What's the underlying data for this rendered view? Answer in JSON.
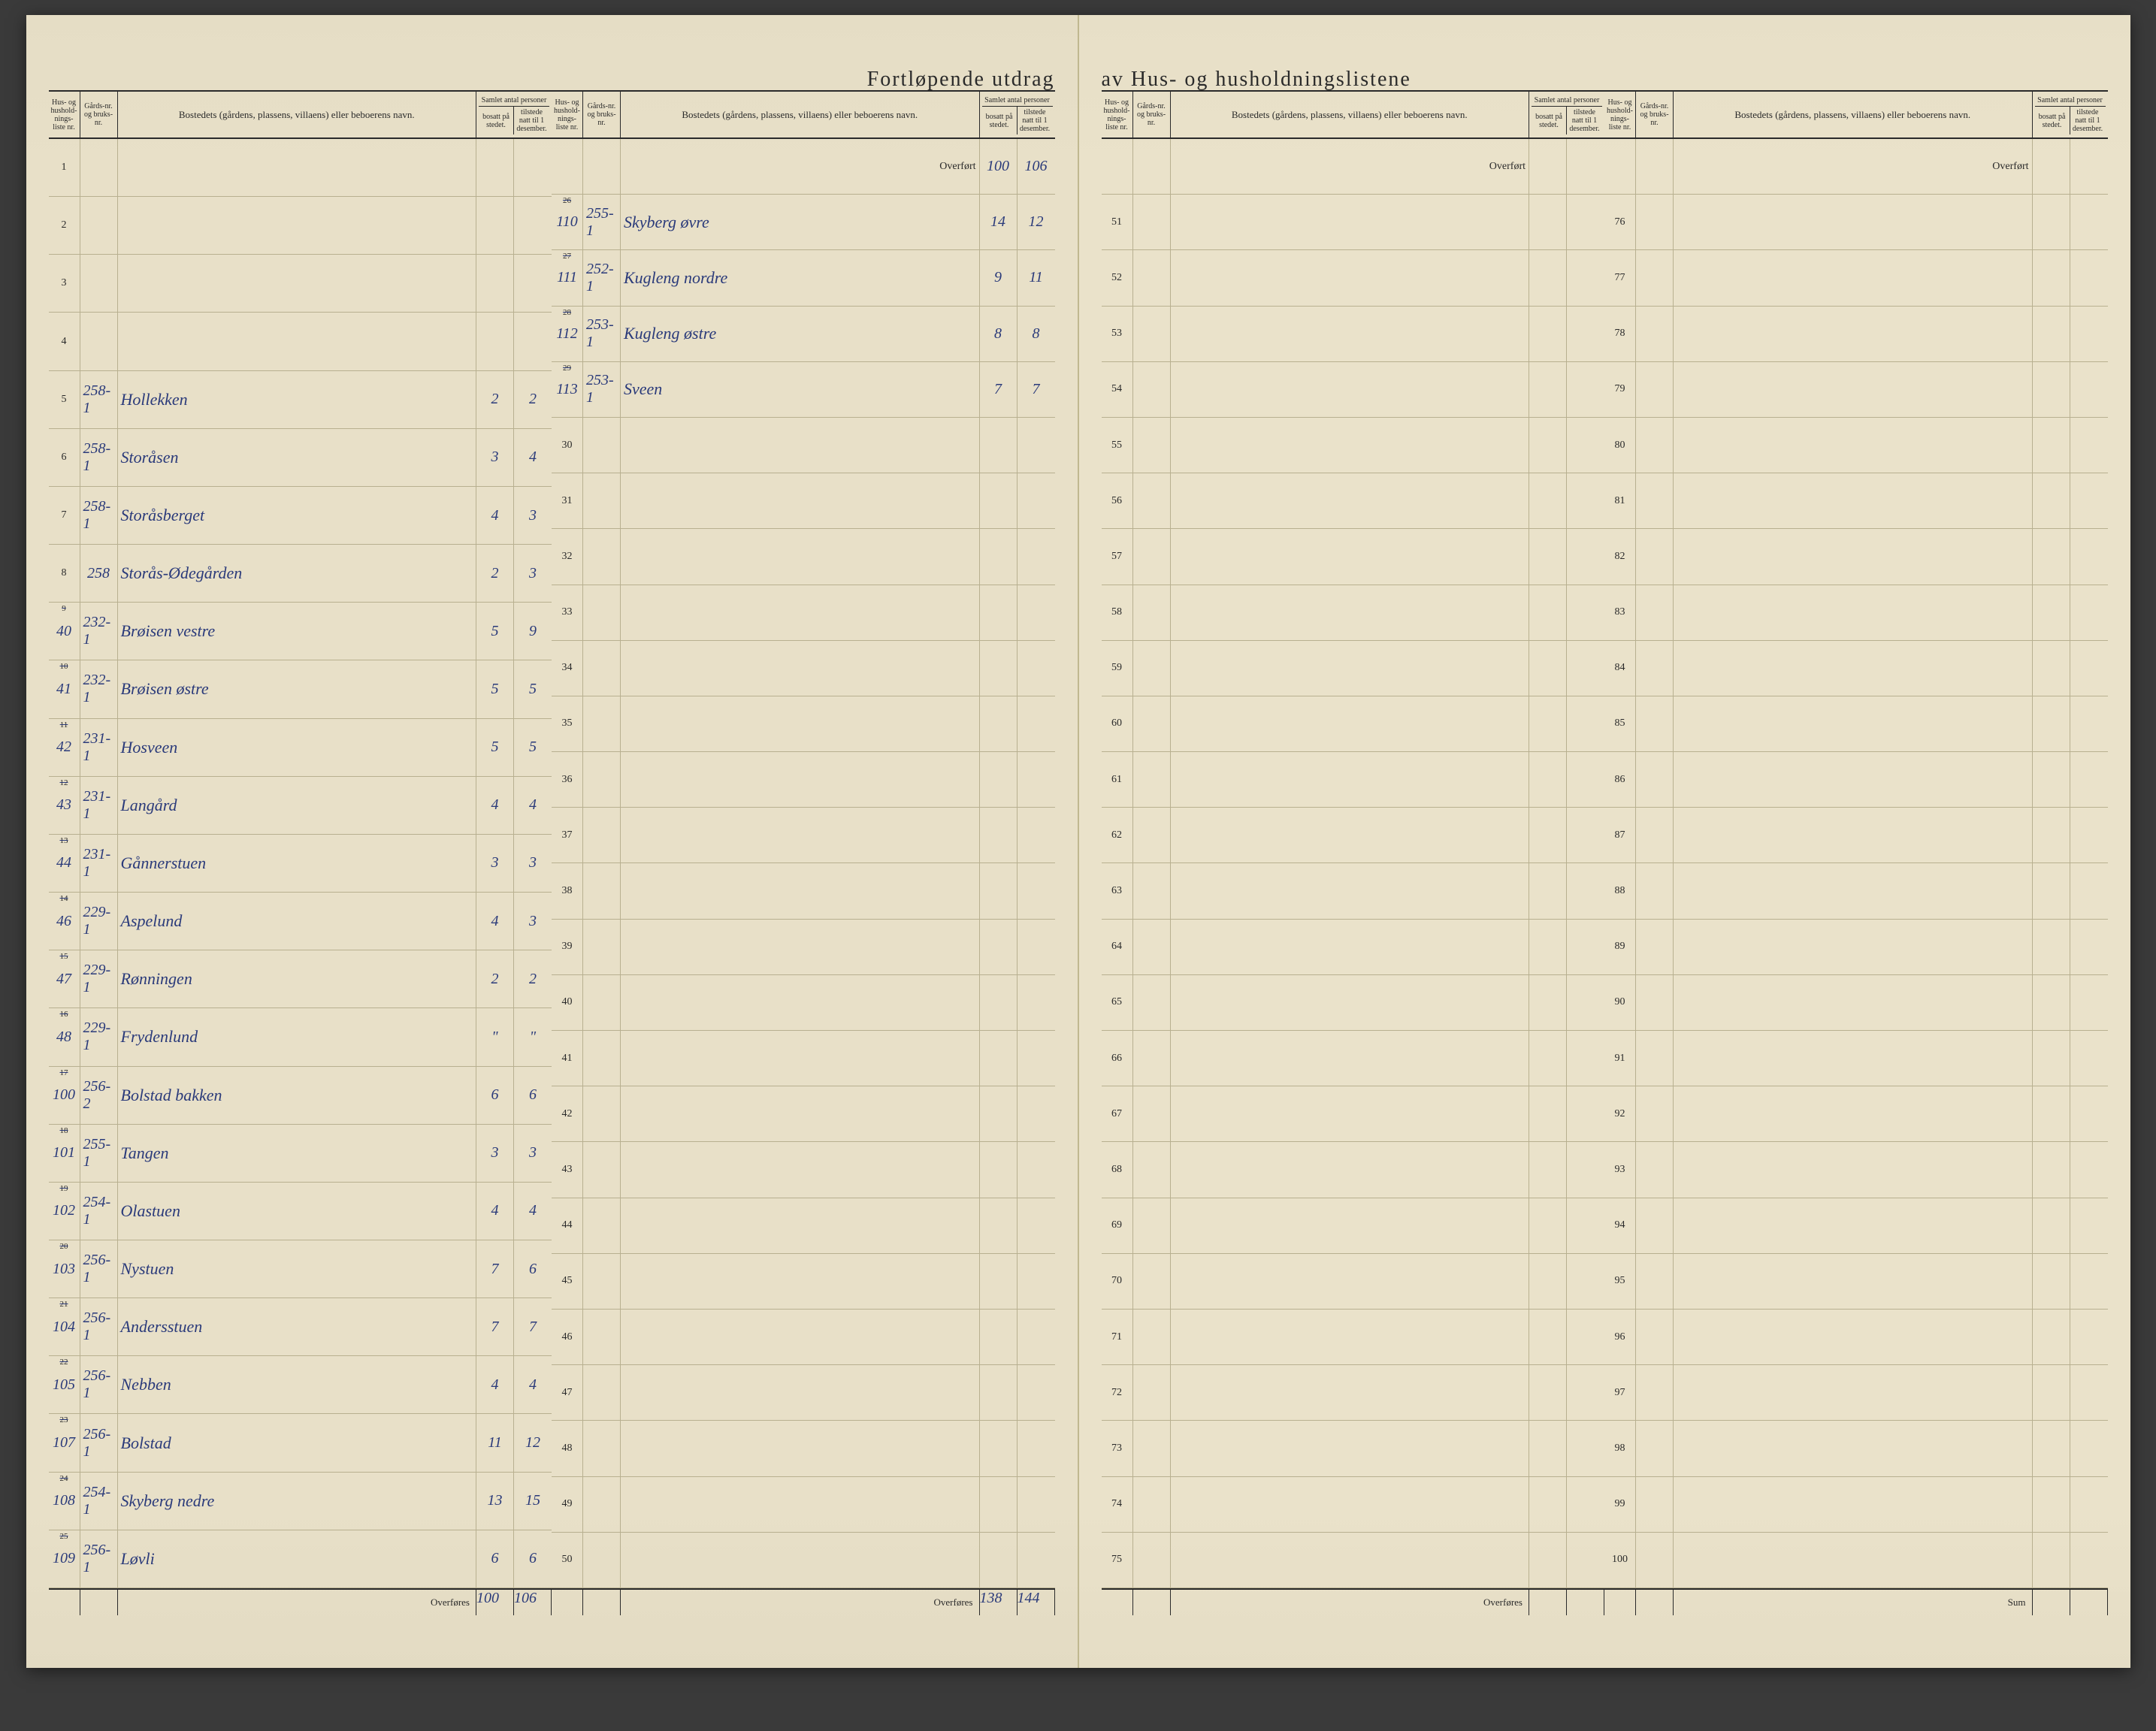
{
  "title_left": "Fortløpende utdrag",
  "title_right": "av Hus- og husholdningslistene",
  "headers": {
    "liste": "Hus- og hushold-nings-liste nr.",
    "gards": "Gårds-nr. og bruks-nr.",
    "bosted": "Bostedets (gårdens, plassens, villaens) eller beboerens navn.",
    "samlet": "Samlet antal personer",
    "bosatt": "bosatt på stedet.",
    "tilstede": "tilstede natt til 1 desember."
  },
  "overfort": "Overført",
  "overfores": "Overføres",
  "sum": "Sum",
  "left_page": {
    "col1": {
      "rows": [
        {
          "n": "1",
          "g": "",
          "name": "",
          "b": "",
          "t": ""
        },
        {
          "n": "2",
          "g": "",
          "name": "",
          "b": "",
          "t": ""
        },
        {
          "n": "3",
          "g": "",
          "name": "",
          "b": "",
          "t": ""
        },
        {
          "n": "4",
          "g": "",
          "name": "",
          "b": "",
          "t": ""
        },
        {
          "n": "5",
          "g": "258-1",
          "name": "Hollekken",
          "b": "2",
          "t": "2"
        },
        {
          "n": "6",
          "g": "258-1",
          "name": "Storåsen",
          "b": "3",
          "t": "4"
        },
        {
          "n": "7",
          "g": "258-1",
          "name": "Storåsberget",
          "b": "4",
          "t": "3"
        },
        {
          "n": "8",
          "g": "258",
          "name": "Storås-Ødegården",
          "b": "2",
          "t": "3"
        },
        {
          "n": "40",
          "ns": "9",
          "g": "232-1",
          "name": "Brøisen vestre",
          "b": "5",
          "t": "9"
        },
        {
          "n": "41",
          "ns": "10",
          "g": "232-1",
          "name": "Brøisen østre",
          "b": "5",
          "t": "5"
        },
        {
          "n": "42",
          "ns": "11",
          "g": "231-1",
          "name": "Hosveen",
          "b": "5",
          "t": "5"
        },
        {
          "n": "43",
          "ns": "12",
          "g": "231-1",
          "name": "Langård",
          "b": "4",
          "t": "4"
        },
        {
          "n": "44",
          "ns": "13",
          "g": "231-1",
          "name": "Gånnerstuen",
          "b": "3",
          "t": "3"
        },
        {
          "n": "46",
          "ns": "14",
          "g": "229-1",
          "name": "Aspelund",
          "b": "4",
          "t": "3"
        },
        {
          "n": "47",
          "ns": "15",
          "g": "229-1",
          "name": "Rønningen",
          "b": "2",
          "t": "2"
        },
        {
          "n": "48",
          "ns": "16",
          "g": "229-1",
          "name": "Frydenlund",
          "b": "\"",
          "t": "\""
        },
        {
          "n": "100",
          "ns": "17",
          "g": "256-2",
          "name": "Bolstad bakken",
          "b": "6",
          "t": "6"
        },
        {
          "n": "101",
          "ns": "18",
          "g": "255-1",
          "name": "Tangen",
          "b": "3",
          "t": "3"
        },
        {
          "n": "102",
          "ns": "19",
          "g": "254-1",
          "name": "Olastuen",
          "b": "4",
          "t": "4"
        },
        {
          "n": "103",
          "ns": "20",
          "g": "256-1",
          "name": "Nystuen",
          "b": "7",
          "t": "6"
        },
        {
          "n": "104",
          "ns": "21",
          "g": "256-1",
          "name": "Andersstuen",
          "b": "7",
          "t": "7"
        },
        {
          "n": "105",
          "ns": "22",
          "g": "256-1",
          "name": "Nebben",
          "b": "4",
          "t": "4"
        },
        {
          "n": "107",
          "ns": "23",
          "g": "256-1",
          "name": "Bolstad",
          "b": "11",
          "t": "12"
        },
        {
          "n": "108",
          "ns": "24",
          "g": "254-1",
          "name": "Skyberg nedre",
          "b": "13",
          "t": "15"
        },
        {
          "n": "109",
          "ns": "25",
          "g": "256-1",
          "name": "Løvli",
          "b": "6",
          "t": "6"
        }
      ],
      "footer_b": "100",
      "footer_t": "106"
    },
    "col2": {
      "overfort_b": "100",
      "overfort_t": "106",
      "rows": [
        {
          "n": "110",
          "ns": "26",
          "g": "255-1",
          "name": "Skyberg øvre",
          "b": "14",
          "t": "12"
        },
        {
          "n": "111",
          "ns": "27",
          "g": "252-1",
          "name": "Kugleng nordre",
          "b": "9",
          "t": "11"
        },
        {
          "n": "112",
          "ns": "28",
          "g": "253-1",
          "name": "Kugleng østre",
          "b": "8",
          "t": "8"
        },
        {
          "n": "113",
          "ns": "29",
          "g": "253-1",
          "name": "Sveen",
          "b": "7",
          "t": "7"
        },
        {
          "n": "30"
        },
        {
          "n": "31"
        },
        {
          "n": "32"
        },
        {
          "n": "33"
        },
        {
          "n": "34"
        },
        {
          "n": "35"
        },
        {
          "n": "36"
        },
        {
          "n": "37"
        },
        {
          "n": "38"
        },
        {
          "n": "39"
        },
        {
          "n": "40"
        },
        {
          "n": "41"
        },
        {
          "n": "42"
        },
        {
          "n": "43"
        },
        {
          "n": "44"
        },
        {
          "n": "45"
        },
        {
          "n": "46"
        },
        {
          "n": "47"
        },
        {
          "n": "48"
        },
        {
          "n": "49"
        },
        {
          "n": "50"
        }
      ],
      "footer_b": "138",
      "footer_t": "144"
    }
  },
  "right_page": {
    "col1": {
      "rows": [
        {
          "n": "51"
        },
        {
          "n": "52"
        },
        {
          "n": "53"
        },
        {
          "n": "54"
        },
        {
          "n": "55"
        },
        {
          "n": "56"
        },
        {
          "n": "57"
        },
        {
          "n": "58"
        },
        {
          "n": "59"
        },
        {
          "n": "60"
        },
        {
          "n": "61"
        },
        {
          "n": "62"
        },
        {
          "n": "63"
        },
        {
          "n": "64"
        },
        {
          "n": "65"
        },
        {
          "n": "66"
        },
        {
          "n": "67"
        },
        {
          "n": "68"
        },
        {
          "n": "69"
        },
        {
          "n": "70"
        },
        {
          "n": "71"
        },
        {
          "n": "72"
        },
        {
          "n": "73"
        },
        {
          "n": "74"
        },
        {
          "n": "75"
        }
      ]
    },
    "col2": {
      "rows": [
        {
          "n": "76"
        },
        {
          "n": "77"
        },
        {
          "n": "78"
        },
        {
          "n": "79"
        },
        {
          "n": "80"
        },
        {
          "n": "81"
        },
        {
          "n": "82"
        },
        {
          "n": "83"
        },
        {
          "n": "84"
        },
        {
          "n": "85"
        },
        {
          "n": "86"
        },
        {
          "n": "87"
        },
        {
          "n": "88"
        },
        {
          "n": "89"
        },
        {
          "n": "90"
        },
        {
          "n": "91"
        },
        {
          "n": "92"
        },
        {
          "n": "93"
        },
        {
          "n": "94"
        },
        {
          "n": "95"
        },
        {
          "n": "96"
        },
        {
          "n": "97"
        },
        {
          "n": "98"
        },
        {
          "n": "99"
        },
        {
          "n": "100"
        }
      ]
    }
  }
}
